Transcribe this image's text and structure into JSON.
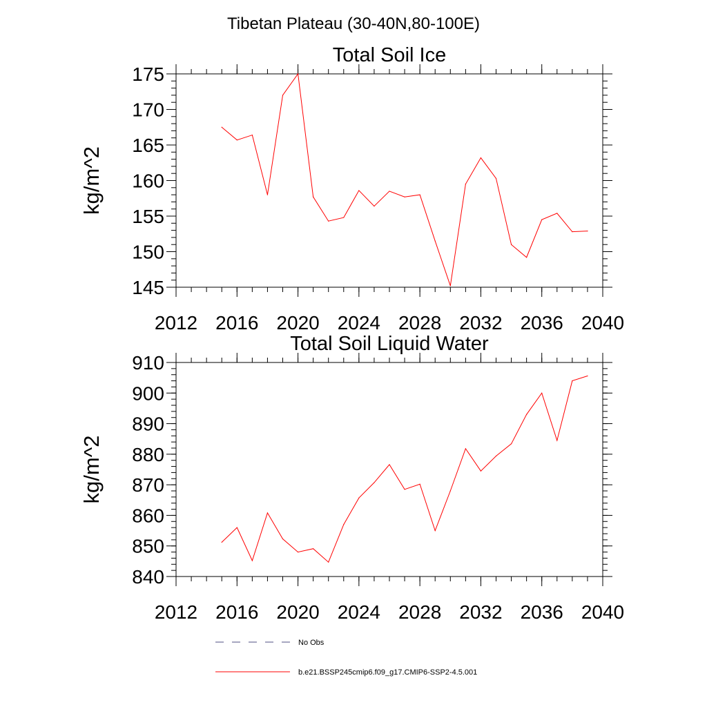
{
  "figure_title": "Tibetan Plateau (30-40N,80-100E)",
  "chart_data": [
    {
      "type": "line",
      "title": "Total Soil Ice",
      "xlabel": "",
      "ylabel": "kg/m^2",
      "xlim": [
        2012,
        2040
      ],
      "ylim": [
        145,
        175
      ],
      "xticks": [
        2012,
        2016,
        2020,
        2024,
        2028,
        2032,
        2036,
        2040
      ],
      "yticks": [
        145,
        150,
        155,
        160,
        165,
        170,
        175
      ],
      "ytick_minor_step": 1,
      "xtick_minor_step": 1,
      "x": [
        2015,
        2016,
        2017,
        2018,
        2019,
        2020,
        2021,
        2022,
        2023,
        2024,
        2025,
        2026,
        2027,
        2028,
        2029,
        2030,
        2031,
        2032,
        2033,
        2034,
        2035,
        2036,
        2037,
        2038,
        2039
      ],
      "series": [
        {
          "name": "b.e21.BSSP245cmip6.f09_g17.CMIP6-SSP2-4.5.001",
          "color": "#ff0000",
          "values": [
            167.5,
            165.7,
            166.4,
            158.0,
            172.0,
            175.0,
            157.7,
            154.3,
            154.8,
            158.6,
            156.4,
            158.5,
            157.7,
            158.0,
            151.5,
            145.2,
            159.5,
            163.2,
            160.3,
            151.0,
            149.2,
            154.5,
            155.4,
            152.8,
            152.9
          ]
        }
      ]
    },
    {
      "type": "line",
      "title": "Total Soil Liquid Water",
      "xlabel": "",
      "ylabel": "kg/m^2",
      "xlim": [
        2012,
        2040
      ],
      "ylim": [
        840,
        910
      ],
      "xticks": [
        2012,
        2016,
        2020,
        2024,
        2028,
        2032,
        2036,
        2040
      ],
      "yticks": [
        840,
        850,
        860,
        870,
        880,
        890,
        900,
        910
      ],
      "ytick_minor_step": 2,
      "xtick_minor_step": 1,
      "x": [
        2015,
        2016,
        2017,
        2018,
        2019,
        2020,
        2021,
        2022,
        2023,
        2024,
        2025,
        2026,
        2027,
        2028,
        2029,
        2030,
        2031,
        2032,
        2033,
        2034,
        2035,
        2036,
        2037,
        2038,
        2039
      ],
      "series": [
        {
          "name": "b.e21.BSSP245cmip6.f09_g17.CMIP6-SSP2-4.5.001",
          "color": "#ff0000",
          "values": [
            851.2,
            856.0,
            845.2,
            860.8,
            852.3,
            848.0,
            849.1,
            844.7,
            857.0,
            865.7,
            870.7,
            876.6,
            868.5,
            870.2,
            855.0,
            868.0,
            881.8,
            874.5,
            879.4,
            883.4,
            893.0,
            900.0,
            884.5,
            904.0,
            905.6
          ]
        }
      ]
    }
  ],
  "legend": {
    "placement": "bottom-center",
    "entries": [
      {
        "label": "No Obs",
        "style": "dashed",
        "color": "#4d4d80"
      },
      {
        "label": "b.e21.BSSP245cmip6.f09_g17.CMIP6-SSP2-4.5.001",
        "style": "solid",
        "color": "#ff0000"
      }
    ]
  }
}
